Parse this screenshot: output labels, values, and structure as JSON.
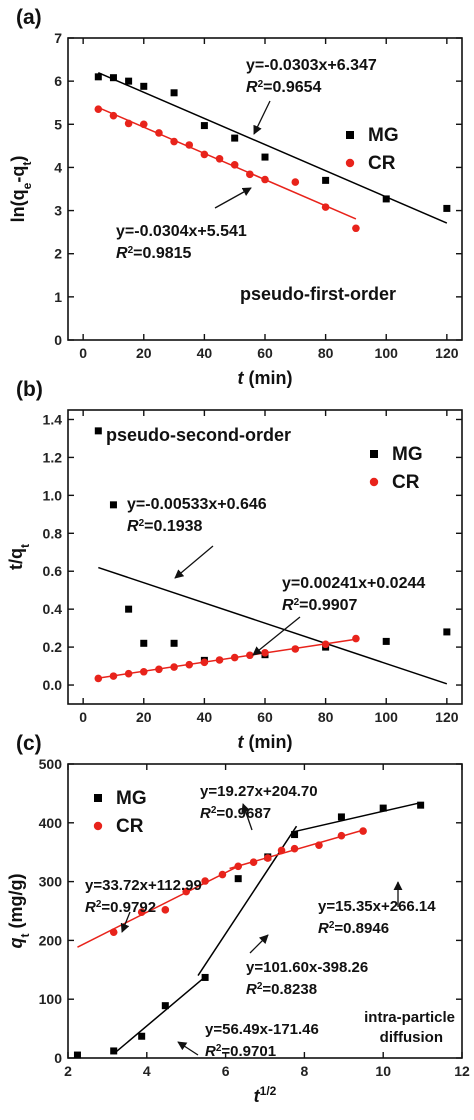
{
  "chart_data": [
    {
      "type": "scatter",
      "panel_label": "(a)",
      "title": "",
      "xlabel_var": "t",
      "xlabel_unit": " (min)",
      "ylabel_main": "ln(q",
      "ylabel_sub1": "e",
      "ylabel_mid": "-q",
      "ylabel_sub2": "t",
      "ylabel_end": ")",
      "xlim": [
        -5,
        125
      ],
      "ylim": [
        0,
        7
      ],
      "xticks": [
        0,
        20,
        40,
        60,
        80,
        100,
        120
      ],
      "yticks": [
        0,
        1,
        2,
        3,
        4,
        5,
        6,
        7
      ],
      "note": "pseudo-first-order",
      "legend": {
        "position": "right",
        "entries": [
          "MG",
          "CR"
        ]
      },
      "series": [
        {
          "name": "MG",
          "color": "#000000",
          "marker": "square",
          "x": [
            5,
            10,
            15,
            20,
            30,
            40,
            50,
            60,
            80,
            100,
            120
          ],
          "y": [
            6.1,
            6.08,
            6.0,
            5.88,
            5.73,
            4.97,
            4.68,
            4.24,
            3.7,
            3.27,
            3.05
          ]
        },
        {
          "name": "CR",
          "color": "#e8231b",
          "marker": "circle",
          "x": [
            5,
            10,
            15,
            20,
            25,
            30,
            35,
            40,
            45,
            50,
            55,
            60,
            70,
            80,
            90
          ],
          "y": [
            5.35,
            5.2,
            5.02,
            5.0,
            4.8,
            4.6,
            4.52,
            4.3,
            4.2,
            4.06,
            3.84,
            3.72,
            3.66,
            3.08,
            2.59
          ]
        }
      ],
      "fits": [
        {
          "series": "MG",
          "color": "#000000",
          "x": [
            5,
            120
          ],
          "slope": -0.0303,
          "intercept": 6.347,
          "equation": "y=-0.0303x+6.347",
          "r2_label": "R",
          "r2_value": "=0.9654"
        },
        {
          "series": "CR",
          "color": "#e8231b",
          "x": [
            5,
            90
          ],
          "slope": -0.0304,
          "intercept": 5.541,
          "equation": "y=-0.0304x+5.541",
          "r2_label": "R",
          "r2_value": "=0.9815"
        }
      ]
    },
    {
      "type": "scatter",
      "panel_label": "(b)",
      "title": "",
      "xlabel_var": "t",
      "xlabel_unit": " (min)",
      "ylabel_main": "t/q",
      "ylabel_sub": "t",
      "xlim": [
        -5,
        125
      ],
      "ylim": [
        -0.1,
        1.45
      ],
      "xticks": [
        0,
        20,
        40,
        60,
        80,
        100,
        120
      ],
      "yticks": [
        0.0,
        0.2,
        0.4,
        0.6,
        0.8,
        1.0,
        1.2,
        1.4
      ],
      "ytick_labels": [
        "0.0",
        "0.2",
        "0.4",
        "0.6",
        "0.8",
        "1.0",
        "1.2",
        "1.4"
      ],
      "note": "pseudo-second-order",
      "legend": {
        "position": "top-right",
        "entries": [
          "MG",
          "CR"
        ]
      },
      "series": [
        {
          "name": "MG",
          "color": "#000000",
          "marker": "square",
          "x": [
            5,
            10,
            15,
            20,
            30,
            40,
            60,
            80,
            100,
            120
          ],
          "y": [
            1.34,
            0.95,
            0.4,
            0.22,
            0.22,
            0.13,
            0.16,
            0.2,
            0.23,
            0.28
          ]
        },
        {
          "name": "CR",
          "color": "#e8231b",
          "marker": "circle",
          "x": [
            5,
            10,
            15,
            20,
            25,
            30,
            35,
            40,
            45,
            50,
            55,
            60,
            70,
            80,
            90
          ],
          "y": [
            0.035,
            0.047,
            0.06,
            0.07,
            0.083,
            0.095,
            0.107,
            0.12,
            0.132,
            0.145,
            0.157,
            0.17,
            0.19,
            0.215,
            0.245
          ]
        }
      ],
      "fits": [
        {
          "series": "MG",
          "color": "#000000",
          "x": [
            5,
            120
          ],
          "slope": -0.00533,
          "intercept": 0.646,
          "equation": "y=-0.00533x+0.646",
          "r2_label": "R",
          "r2_value": "=0.1938"
        },
        {
          "series": "CR",
          "color": "#e8231b",
          "x": [
            5,
            90
          ],
          "slope": 0.00241,
          "intercept": 0.0244,
          "equation": "y=0.00241x+0.0244",
          "r2_label": "R",
          "r2_value": "=0.9907"
        }
      ]
    },
    {
      "type": "scatter",
      "panel_label": "(c)",
      "title": "",
      "xlabel_var": "t",
      "xlabel_sup": "1/2",
      "ylabel_var": "q",
      "ylabel_sub": "t",
      "ylabel_unit": " (mg/g)",
      "xlim": [
        2,
        12
      ],
      "ylim": [
        0,
        500
      ],
      "xticks": [
        2,
        4,
        6,
        8,
        10,
        12
      ],
      "yticks": [
        0,
        100,
        200,
        300,
        400,
        500
      ],
      "note_lines": [
        "intra-particle",
        "diffusion"
      ],
      "legend": {
        "position": "top-left",
        "entries": [
          "MG",
          "CR"
        ]
      },
      "series": [
        {
          "name": "MG",
          "color": "#000000",
          "marker": "square",
          "x": [
            2.24,
            3.16,
            3.87,
            4.47,
            5.48,
            6.32,
            7.07,
            7.75,
            8.94,
            10.0,
            10.95
          ],
          "y": [
            5,
            12,
            37,
            89,
            137,
            305,
            342,
            380,
            410,
            425,
            430
          ]
        },
        {
          "name": "CR",
          "color": "#e8231b",
          "marker": "circle",
          "x": [
            3.16,
            3.87,
            4.47,
            5.0,
            5.48,
            5.92,
            6.32,
            6.71,
            7.07,
            7.42,
            7.75,
            8.37,
            8.94,
            9.49
          ],
          "y": [
            214,
            248,
            252,
            283,
            301,
            312,
            326,
            333,
            340,
            353,
            356,
            362,
            378,
            386
          ]
        }
      ],
      "fits": [
        {
          "series": "MG",
          "color": "#000000",
          "x": [
            3.16,
            5.48
          ],
          "slope": 56.49,
          "intercept": -171.46,
          "equation": "y=56.49x-171.46",
          "r2_label": "R",
          "r2_value": "=0.9701"
        },
        {
          "series": "MG",
          "color": "#000000",
          "x": [
            5.3,
            7.8
          ],
          "slope": 101.6,
          "intercept": -398.26,
          "equation": "y=101.60x-398.26",
          "r2_label": "R",
          "r2_value": "=0.8238"
        },
        {
          "series": "MG",
          "color": "#000000",
          "x": [
            7.75,
            10.95
          ],
          "slope": 15.35,
          "intercept": 266.14,
          "equation": "y=15.35x+266.14",
          "r2_label": "R",
          "r2_value": "=0.8946"
        },
        {
          "series": "CR",
          "color": "#e8231b",
          "x": [
            2.24,
            6.4
          ],
          "slope": 33.72,
          "intercept": 112.99,
          "equation": "y=33.72x+112.99",
          "r2_label": "R",
          "r2_value": "=0.9792"
        },
        {
          "series": "CR",
          "color": "#e8231b",
          "x": [
            6.1,
            9.5
          ],
          "slope": 19.27,
          "intercept": 204.7,
          "equation": "y=19.27x+204.70",
          "r2_label": "R",
          "r2_value": "=0.9687"
        }
      ]
    }
  ]
}
